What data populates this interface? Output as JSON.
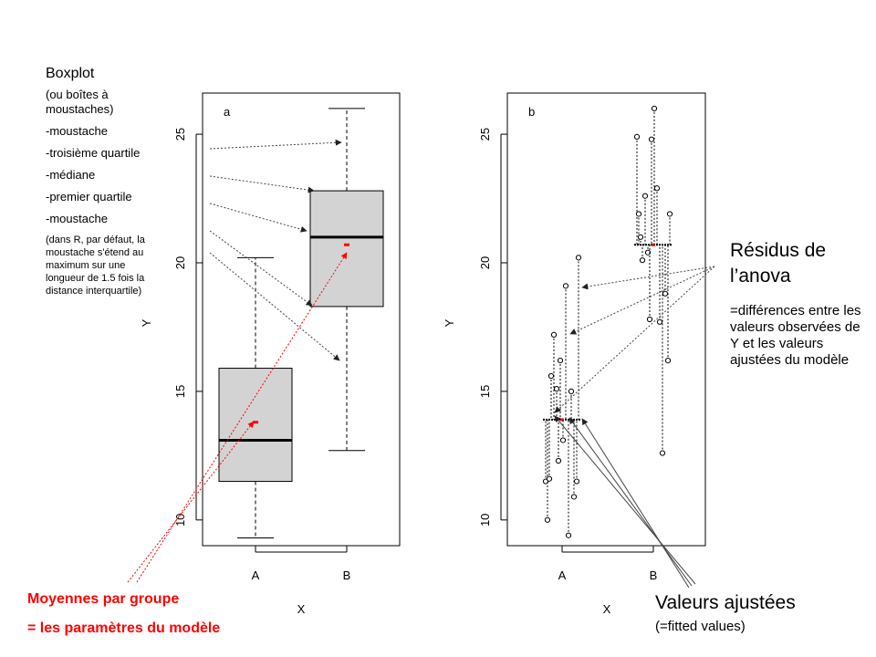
{
  "annotations": {
    "left": {
      "title": "Boxplot",
      "items": [
        "(ou boîtes à moustaches)",
        "-moustache",
        "-troisième quartile",
        "-médiane",
        "-premier quartile",
        "-moustache"
      ],
      "note": "(dans R, par défaut, la moustache s'étend au maximum sur une longueur de 1.5 fois la distance interquartile)"
    },
    "means": {
      "line1": "Moyennes par groupe",
      "line2": "= les paramètres du modèle"
    },
    "residuals": {
      "title_line1": "Résidus de",
      "title_line2": "l’anova",
      "desc": "=différences entre les valeurs observées de Y et les valeurs ajustées du modèle"
    },
    "fitted": {
      "title": "Valeurs ajustées",
      "sub": "(=fitted values)"
    }
  },
  "colors": {
    "box_fill": "#d3d3d3",
    "mean_marker": "#ff0000",
    "annotation_red": "#ff0000",
    "arrow": "#444444"
  },
  "chart_data": [
    {
      "type": "boxplot",
      "panel_label": "a",
      "xlabel": "X",
      "ylabel": "Y",
      "categories": [
        "A",
        "B"
      ],
      "yticks": [
        10,
        15,
        20,
        25
      ],
      "ylim": [
        9,
        26.6
      ],
      "boxes": [
        {
          "name": "A",
          "whisker_low": 9.3,
          "q1": 11.5,
          "median": 13.1,
          "q3": 15.9,
          "whisker_high": 20.2,
          "mean": 13.8
        },
        {
          "name": "B",
          "whisker_low": 12.7,
          "q1": 18.3,
          "median": 21.0,
          "q3": 22.8,
          "whisker_high": 26.0,
          "mean": 20.7
        }
      ]
    },
    {
      "type": "scatter",
      "panel_label": "b",
      "xlabel": "X",
      "ylabel": "Y",
      "categories": [
        "A",
        "B"
      ],
      "yticks": [
        10,
        15,
        20,
        25
      ],
      "ylim": [
        9,
        26.6
      ],
      "fitted": {
        "A": 13.9,
        "B": 20.7
      },
      "series": [
        {
          "name": "A",
          "values": [
            11.5,
            10.0,
            11.6,
            15.6,
            17.2,
            15.1,
            12.3,
            16.2,
            13.1,
            19.1,
            9.4,
            15.0,
            10.9,
            11.5,
            20.2
          ]
        },
        {
          "name": "B",
          "values": [
            24.9,
            21.9,
            21.0,
            20.1,
            22.6,
            20.4,
            17.8,
            24.8,
            26.0,
            22.9,
            17.7,
            12.6,
            18.8,
            16.2,
            21.9
          ]
        }
      ]
    }
  ]
}
